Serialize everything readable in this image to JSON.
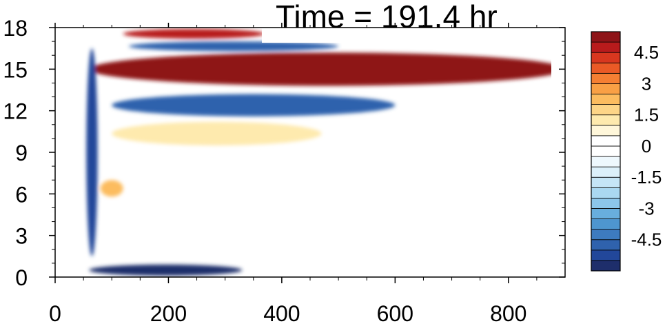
{
  "chart_data": {
    "type": "heatmap",
    "title": "Time = 191.4 hr",
    "xlabel": "",
    "ylabel": "",
    "xlim": [
      0,
      900
    ],
    "ylim": [
      0,
      18
    ],
    "xticks": [
      "0",
      "200",
      "400",
      "600",
      "800"
    ],
    "xtick_values": [
      0,
      200,
      400,
      600,
      800
    ],
    "yticks": [
      "0",
      "3",
      "6",
      "9",
      "12",
      "15",
      "18"
    ],
    "ytick_values": [
      0,
      3,
      6,
      9,
      12,
      15,
      18
    ],
    "colorbar": {
      "levels": [
        -5.5,
        -5,
        -4.5,
        -4,
        -3.5,
        -3,
        -2.5,
        -2,
        -1.5,
        -1,
        -0.5,
        0,
        0.5,
        1,
        1.5,
        2,
        2.5,
        3,
        3.5,
        4,
        4.5,
        5,
        5.5
      ],
      "colors": [
        "#1e2e6b",
        "#22479a",
        "#2f62ad",
        "#3d7bbf",
        "#4e96cf",
        "#68aedd",
        "#8cc6ea",
        "#aad8f1",
        "#c5e5f6",
        "#dcf0fa",
        "#eef8fd",
        "#ffffff",
        "#ffffff",
        "#fff7da",
        "#feeaae",
        "#fdd587",
        "#fcbc5f",
        "#f9a045",
        "#f57f33",
        "#ea5a26",
        "#d8371f",
        "#b81b1c",
        "#8e1418"
      ],
      "labels": [
        "4.5",
        "3",
        "1.5",
        "0",
        "-1.5",
        "-3",
        "-4.5"
      ],
      "label_values": [
        4.5,
        3,
        1.5,
        0,
        -1.5,
        -3,
        -4.5
      ]
    },
    "features": [
      {
        "name": "upper positive band",
        "x": [
          60,
          900
        ],
        "y": [
          13.8,
          16.2
        ],
        "peak": 6
      },
      {
        "name": "top positive strip",
        "x": [
          120,
          370
        ],
        "y": [
          17.2,
          17.9
        ],
        "peak": 5
      },
      {
        "name": "top negative strip",
        "x": [
          130,
          500
        ],
        "y": [
          16.3,
          17.0
        ],
        "peak": -4.5
      },
      {
        "name": "mid negative band",
        "x": [
          100,
          600
        ],
        "y": [
          11.6,
          13.2
        ],
        "peak": -4.5
      },
      {
        "name": "near-surface negative band",
        "x": [
          60,
          330
        ],
        "y": [
          0.1,
          0.9
        ],
        "peak": -5.5
      },
      {
        "name": "vertical negative column",
        "x": [
          55,
          75
        ],
        "y": [
          1.5,
          16.5
        ],
        "peak": -5
      },
      {
        "name": "weak positive patch",
        "x": [
          100,
          470
        ],
        "y": [
          9.5,
          11.2
        ],
        "peak": 1.5
      },
      {
        "name": "positive patch",
        "x": [
          80,
          120
        ],
        "y": [
          5.8,
          7.0
        ],
        "peak": 2.5
      }
    ]
  }
}
